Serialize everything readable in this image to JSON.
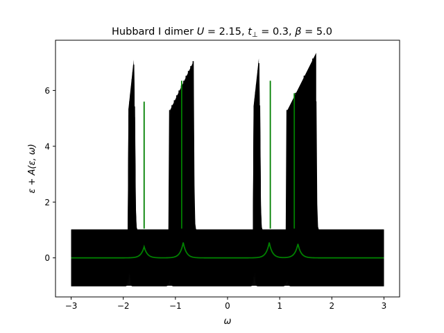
{
  "chart_data": {
    "type": "line",
    "title": "Hubbard I dimer U = 2.15, t⊥ = 0.3, β = 5.0",
    "title_parts": {
      "lead": "Hubbard I dimer ",
      "U_sym": "U",
      "U_val": " = 2.15, ",
      "t_sym": "t",
      "t_sub": "⊥",
      "t_val": " = 0.3, ",
      "beta_sym": "β",
      "beta_val": " = 5.0"
    },
    "xlabel": "ω",
    "ylabel": "ε + A(ε, ω)",
    "xlim": [
      -3.3,
      3.3
    ],
    "ylim": [
      -1.4,
      7.8
    ],
    "x_ticks": [
      -3,
      -2,
      -1,
      0,
      1,
      2,
      3
    ],
    "x_tick_labels": [
      "−3",
      "−2",
      "−1",
      "0",
      "1",
      "2",
      "3"
    ],
    "y_ticks": [
      0,
      2,
      4,
      6
    ],
    "y_tick_labels": [
      "0",
      "2",
      "4",
      "6"
    ],
    "grid": false,
    "legend": "none",
    "omega_range": [
      -3,
      3
    ],
    "epsilon_range": [
      -1,
      1
    ],
    "curve_count": 101,
    "colors": {
      "curves": "#000000",
      "highlight": "#008000",
      "axes": "#000000"
    },
    "band_edges": [
      {
        "lo_start": -1.9,
        "lo_end": -1.8,
        "hi_start": -1.1,
        "hi_end": -0.65
      },
      {
        "lo_start": 0.5,
        "lo_end": 0.6,
        "hi_start": 1.15,
        "hi_end": 1.7
      }
    ],
    "peak_heights": [
      {
        "lo_start": 5.35,
        "lo_end": 7.1,
        "hi_start": 5.3,
        "hi_end": 7.05
      },
      {
        "lo_start": 5.45,
        "lo_end": 7.15,
        "hi_start": 5.3,
        "hi_end": 7.35
      }
    ],
    "highlight_series": {
      "name": "",
      "epsilon": 0.0,
      "peaks": [
        {
          "omega": -1.6,
          "height": 0.4
        },
        {
          "omega": -0.85,
          "height": 0.55
        },
        {
          "omega": 0.8,
          "height": 0.55
        },
        {
          "omega": 1.35,
          "height": 0.5
        }
      ],
      "spikes_shifted": [
        {
          "omega": -1.6,
          "height": 5.6
        },
        {
          "omega": -0.88,
          "height": 6.35
        },
        {
          "omega": 0.82,
          "height": 6.35
        },
        {
          "omega": 1.28,
          "height": 5.9
        }
      ]
    }
  }
}
